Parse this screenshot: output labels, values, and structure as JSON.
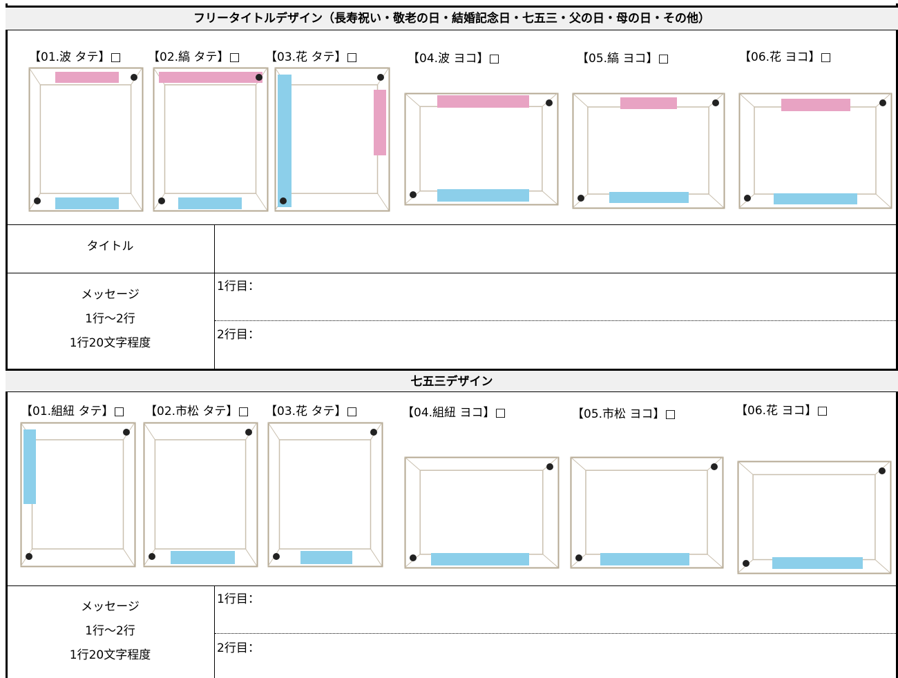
{
  "section1": {
    "title": "フリータイトルデザイン（長寿祝い・敬老の日・結婚記念日・七五三・父の日・母の日・その他）",
    "designs": [
      "【01.波 タテ】□",
      "【02.縞 タテ】□",
      "【03.花 タテ】□",
      "【04.波 ヨコ】□",
      "【05.縞 ヨコ】□",
      "【06.花 ヨコ】□"
    ],
    "title_row": {
      "label": "タイトル"
    },
    "message": {
      "label": [
        "メッセージ",
        "1行～2行",
        "1行20文字程度"
      ],
      "lines": [
        "1行目：",
        "2行目："
      ]
    }
  },
  "section2": {
    "title": "七五三デザイン",
    "designs": [
      "【01.組紐 タテ】□",
      "【02.市松 タテ】□",
      "【03.花 タテ】□",
      "【04.組紐 ヨコ】□",
      "【05.市松 ヨコ】□",
      "【06.花 ヨコ】□"
    ],
    "message": {
      "label": [
        "メッセージ",
        "1行～2行",
        "1行20文字程度"
      ],
      "lines": [
        "1行目：",
        "2行目："
      ]
    }
  }
}
